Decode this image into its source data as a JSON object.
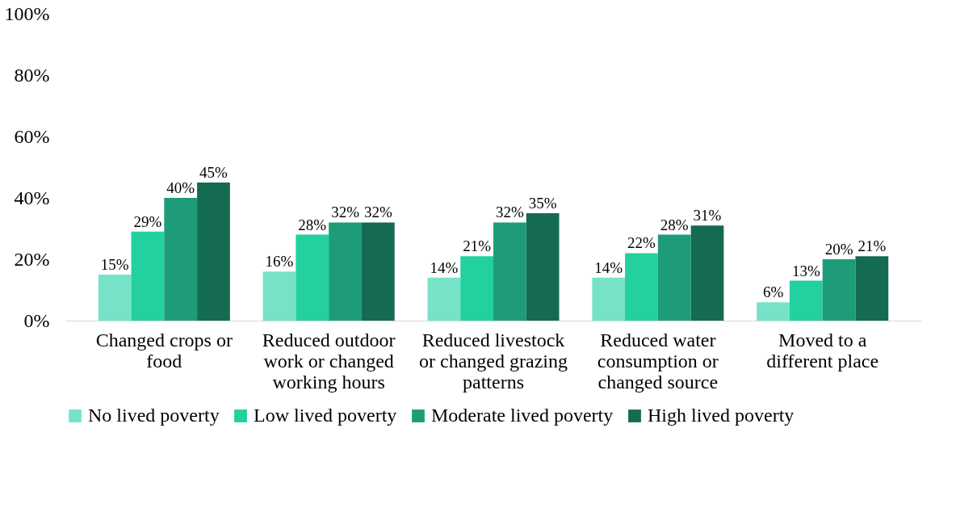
{
  "chart_data": {
    "type": "bar",
    "categories": [
      "Changed crops or food",
      "Reduced outdoor work or changed working hours",
      "Reduced livestock or changed grazing patterns",
      "Reduced water consumption or changed source",
      "Moved to a different place"
    ],
    "series": [
      {
        "name": "No lived poverty",
        "color": "#76e3c8",
        "values": [
          15,
          16,
          14,
          14,
          6
        ],
        "value_labels": [
          "15%",
          "16%",
          "14%",
          "14%",
          "6%"
        ]
      },
      {
        "name": "Low lived poverty",
        "color": "#22d0a0",
        "values": [
          29,
          28,
          21,
          22,
          13
        ],
        "value_labels": [
          "29%",
          "28%",
          "21%",
          "22%",
          "13%"
        ]
      },
      {
        "name": "Moderate lived poverty",
        "color": "#1e9c7a",
        "values": [
          40,
          32,
          32,
          28,
          20
        ],
        "value_labels": [
          "40%",
          "32%",
          "32%",
          "28%",
          "20%"
        ]
      },
      {
        "name": "High lived poverty",
        "color": "#156b52",
        "values": [
          45,
          32,
          35,
          31,
          21
        ],
        "value_labels": [
          "45%",
          "32%",
          "35%",
          "31%",
          "21%"
        ]
      }
    ],
    "ylim": [
      0,
      100
    ],
    "yticks": [
      {
        "value": 0,
        "label": "0%"
      },
      {
        "value": 20,
        "label": "20%"
      },
      {
        "value": 40,
        "label": "40%"
      },
      {
        "value": 60,
        "label": "60%"
      },
      {
        "value": 80,
        "label": "80%"
      },
      {
        "value": 100,
        "label": "100%"
      }
    ],
    "grid": false,
    "legend": "bottom"
  }
}
